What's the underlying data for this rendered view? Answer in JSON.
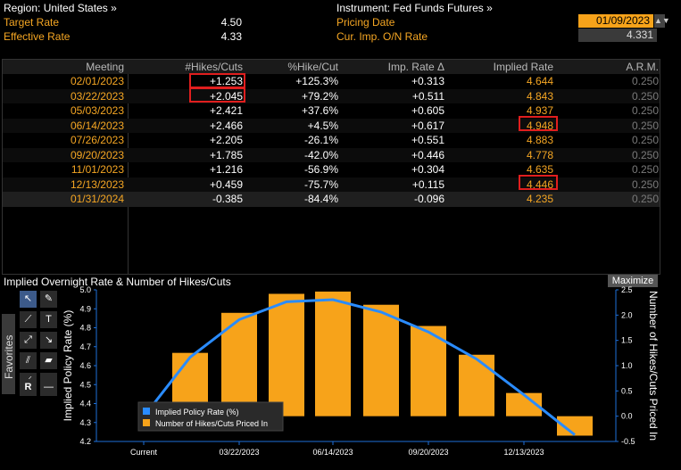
{
  "header": {
    "region_label": "Region: United States »",
    "instrument_label": "Instrument: Fed Funds Futures »",
    "target_rate_label": "Target Rate",
    "target_rate_value": "4.50",
    "effective_rate_label": "Effective Rate",
    "effective_rate_value": "4.33",
    "pricing_date_label": "Pricing Date",
    "pricing_date_value": "01/09/2023",
    "cur_imp_label": "Cur. Imp. O/N Rate",
    "cur_imp_value": "4.331",
    "spin_glyph": "▲▼"
  },
  "table": {
    "columns": [
      "Meeting",
      "#Hikes/Cuts",
      "%Hike/Cut",
      "Imp. Rate Δ",
      "Implied Rate",
      "A.R.M."
    ],
    "rows": [
      {
        "meeting": "02/01/2023",
        "hikes": "+1.253",
        "pct": "+125.3%",
        "delta": "+0.313",
        "implied": "4.644",
        "arm": "0.250"
      },
      {
        "meeting": "03/22/2023",
        "hikes": "+2.045",
        "pct": "+79.2%",
        "delta": "+0.511",
        "implied": "4.843",
        "arm": "0.250"
      },
      {
        "meeting": "05/03/2023",
        "hikes": "+2.421",
        "pct": "+37.6%",
        "delta": "+0.605",
        "implied": "4.937",
        "arm": "0.250"
      },
      {
        "meeting": "06/14/2023",
        "hikes": "+2.466",
        "pct": "+4.5%",
        "delta": "+0.617",
        "implied": "4.948",
        "arm": "0.250"
      },
      {
        "meeting": "07/26/2023",
        "hikes": "+2.205",
        "pct": "-26.1%",
        "delta": "+0.551",
        "implied": "4.883",
        "arm": "0.250"
      },
      {
        "meeting": "09/20/2023",
        "hikes": "+1.785",
        "pct": "-42.0%",
        "delta": "+0.446",
        "implied": "4.778",
        "arm": "0.250"
      },
      {
        "meeting": "11/01/2023",
        "hikes": "+1.216",
        "pct": "-56.9%",
        "delta": "+0.304",
        "implied": "4.635",
        "arm": "0.250"
      },
      {
        "meeting": "12/13/2023",
        "hikes": "+0.459",
        "pct": "-75.7%",
        "delta": "+0.115",
        "implied": "4.446",
        "arm": "0.250"
      },
      {
        "meeting": "01/31/2024",
        "hikes": "-0.385",
        "pct": "-84.4%",
        "delta": "-0.096",
        "implied": "4.235",
        "arm": "0.250"
      }
    ]
  },
  "chart_panel": {
    "title": "Implied Overnight Rate & Number of Hikes/Cuts",
    "maximize_label": "Maximize",
    "favorites_label": "Favorites",
    "toolbar_icons": [
      "pointer-icon",
      "pen-icon",
      "line-icon",
      "text-icon",
      "trend-line-icon",
      "arrow-icon",
      "channel-icon",
      "ray-icon",
      "pencil-icon",
      "rectangle-icon",
      "annotation-icon",
      "horizontal-line-icon"
    ],
    "toolbar_r_label": "R"
  },
  "colors": {
    "orange": "#f5a623",
    "bar": "#f7a31a",
    "line": "#2a8cff",
    "highlight": "#e01e1e"
  },
  "chart_data": {
    "type": "bar",
    "categories": [
      "Current",
      "02/01/2023",
      "03/22/2023",
      "05/03/2023",
      "06/14/2023",
      "07/26/2023",
      "09/20/2023",
      "11/01/2023",
      "12/13/2023",
      "01/31/2024"
    ],
    "x_tick_labels": [
      "Current",
      "03/22/2023",
      "06/14/2023",
      "09/20/2023",
      "12/13/2023"
    ],
    "series": [
      {
        "name": "Implied Policy Rate (%)",
        "type": "line",
        "axis": "left",
        "values": [
          4.331,
          4.644,
          4.843,
          4.937,
          4.948,
          4.883,
          4.778,
          4.635,
          4.446,
          4.235
        ]
      },
      {
        "name": "Number of Hikes/Cuts Priced In",
        "type": "bar",
        "axis": "right",
        "values": [
          null,
          1.253,
          2.045,
          2.421,
          2.466,
          2.205,
          1.785,
          1.216,
          0.459,
          -0.385
        ]
      }
    ],
    "ylabel": "Implied Policy Rate (%)",
    "y2label": "Number of Hikes/Cuts Priced In",
    "ylim": [
      4.2,
      5.0
    ],
    "y2lim": [
      -0.5,
      2.5
    ],
    "yticks": [
      "4.2",
      "4.3",
      "4.4",
      "4.5",
      "4.6",
      "4.7",
      "4.8",
      "4.9",
      "5.0"
    ],
    "y2ticks": [
      "-0.5",
      "0.0",
      "0.5",
      "1.0",
      "1.5",
      "2.0",
      "2.5"
    ],
    "legend_position": "bottom-left",
    "grid": false
  }
}
